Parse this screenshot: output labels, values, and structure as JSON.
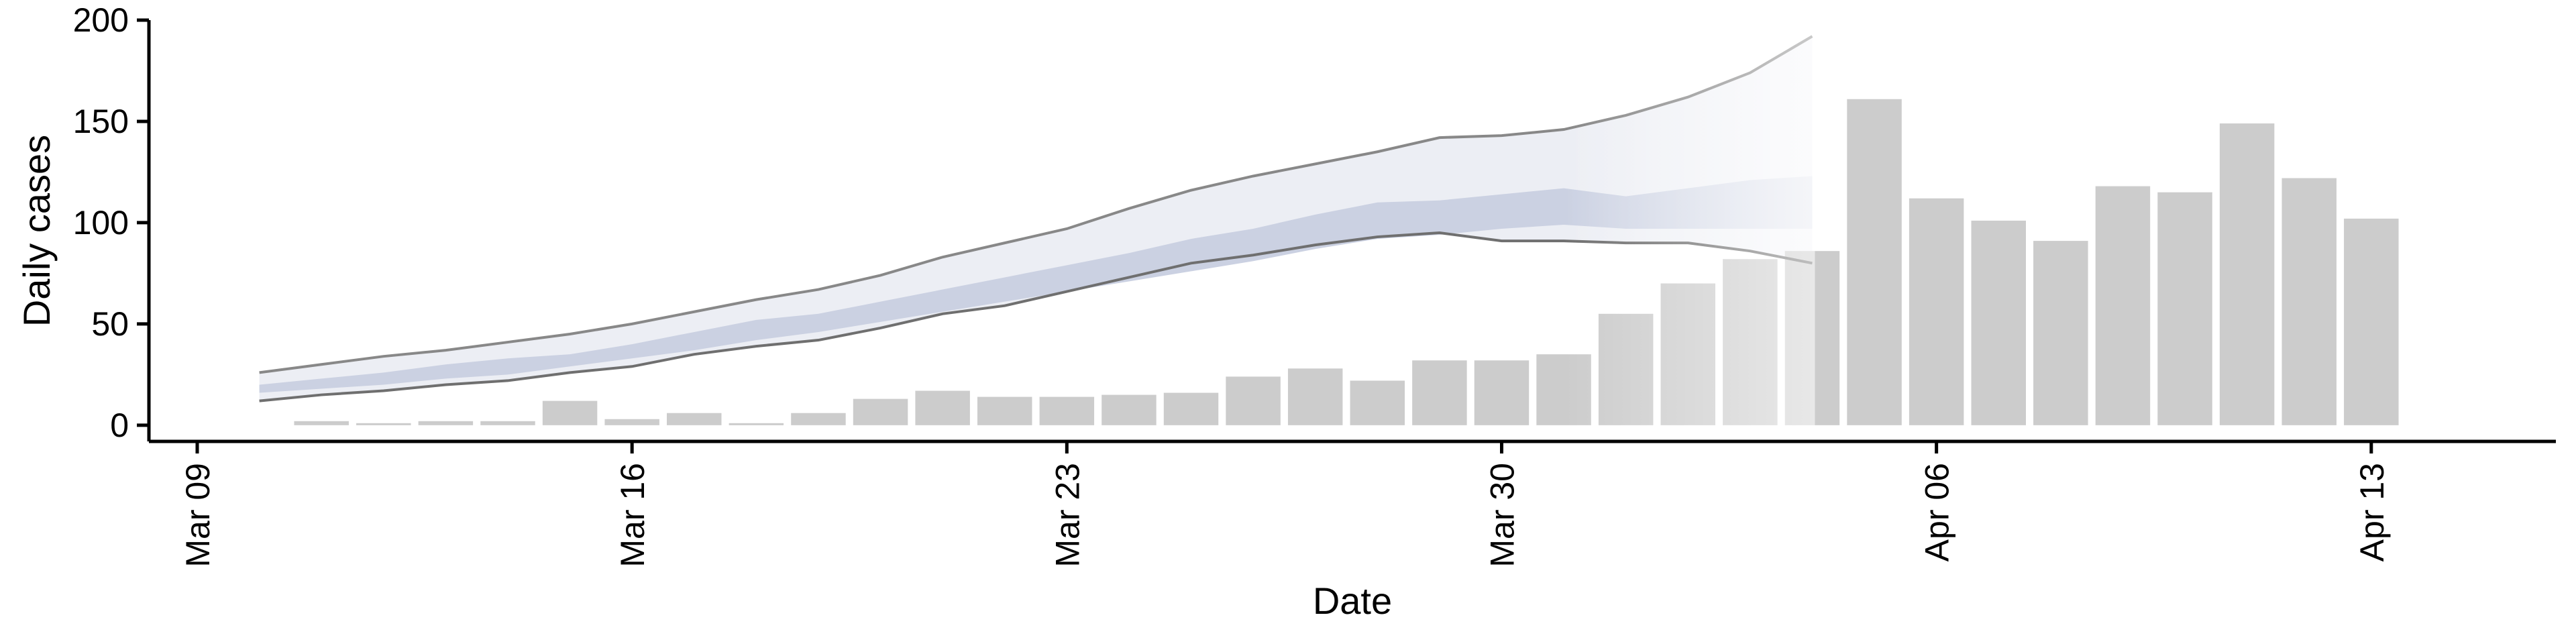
{
  "chart_data": {
    "type": "bar",
    "xlabel": "Date",
    "ylabel": "Daily cases",
    "ylim": [
      -8,
      200
    ],
    "xlim": [
      "2020-03-09",
      "2020-04-15"
    ],
    "yticks": [
      0,
      50,
      100,
      150,
      200
    ],
    "xticks": [
      "Mar 09",
      "Mar 16",
      "Mar 23",
      "Mar 30",
      "Apr 06",
      "Apr 13"
    ],
    "bars": {
      "dates": [
        "2020-03-11",
        "2020-03-12",
        "2020-03-13",
        "2020-03-14",
        "2020-03-15",
        "2020-03-16",
        "2020-03-17",
        "2020-03-18",
        "2020-03-19",
        "2020-03-20",
        "2020-03-21",
        "2020-03-22",
        "2020-03-23",
        "2020-03-24",
        "2020-03-25",
        "2020-03-26",
        "2020-03-27",
        "2020-03-28",
        "2020-03-29",
        "2020-03-30",
        "2020-03-31",
        "2020-04-01",
        "2020-04-02",
        "2020-04-03",
        "2020-04-04",
        "2020-04-05",
        "2020-04-06",
        "2020-04-07",
        "2020-04-08",
        "2020-04-09",
        "2020-04-10",
        "2020-04-11",
        "2020-04-12",
        "2020-04-13"
      ],
      "values": [
        2,
        1,
        2,
        2,
        12,
        3,
        6,
        1,
        6,
        13,
        17,
        14,
        14,
        15,
        16,
        24,
        28,
        22,
        32,
        32,
        35,
        55,
        70,
        82,
        86,
        161,
        112,
        101,
        91,
        118,
        115,
        149,
        122,
        102
      ],
      "color": "#cccccc"
    },
    "nowcast": {
      "dates": [
        "2020-03-10",
        "2020-03-11",
        "2020-03-12",
        "2020-03-13",
        "2020-03-14",
        "2020-03-15",
        "2020-03-16",
        "2020-03-17",
        "2020-03-18",
        "2020-03-19",
        "2020-03-20",
        "2020-03-21",
        "2020-03-22",
        "2020-03-23",
        "2020-03-24",
        "2020-03-25",
        "2020-03-26",
        "2020-03-27",
        "2020-03-28",
        "2020-03-29",
        "2020-03-30",
        "2020-03-31",
        "2020-04-01",
        "2020-04-02",
        "2020-04-03",
        "2020-04-04"
      ],
      "upper": [
        26,
        30,
        34,
        37,
        41,
        45,
        50,
        56,
        62,
        67,
        74,
        83,
        90,
        97,
        107,
        116,
        123,
        129,
        135,
        142,
        143,
        146,
        153,
        162,
        174,
        192
      ],
      "lower": [
        12,
        15,
        17,
        20,
        22,
        26,
        29,
        35,
        39,
        42,
        48,
        55,
        59,
        66,
        73,
        80,
        84,
        89,
        93,
        95,
        91,
        91,
        90,
        90,
        86,
        80
      ],
      "inner_upper": [
        20,
        23,
        26,
        30,
        33,
        35,
        40,
        46,
        52,
        55,
        61,
        67,
        73,
        79,
        85,
        92,
        97,
        104,
        110,
        111,
        114,
        117,
        113,
        117,
        121,
        123
      ],
      "inner_lower": [
        16,
        18,
        20,
        23,
        25,
        29,
        33,
        37,
        42,
        46,
        51,
        56,
        61,
        66,
        71,
        76,
        81,
        87,
        92,
        94,
        97,
        99,
        97,
        97,
        97,
        97
      ],
      "outer_color": "#eceef4",
      "inner_color": "#cbd1e2",
      "line_color": "#888888"
    }
  }
}
